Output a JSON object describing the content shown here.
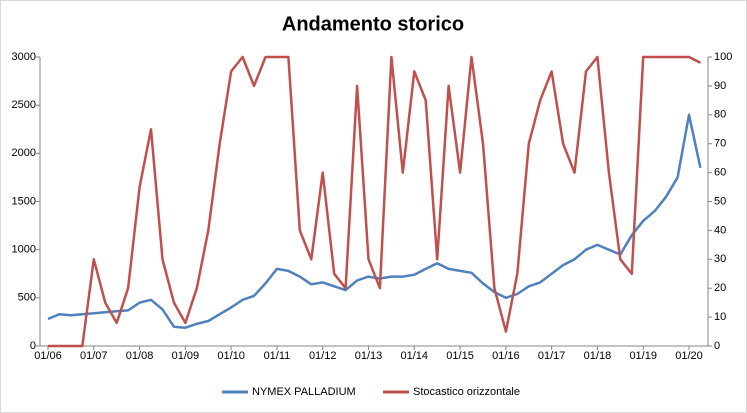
{
  "chart_data": {
    "type": "line",
    "title": "Andamento storico",
    "categories": [
      "01/06",
      null,
      null,
      null,
      "01/07",
      null,
      null,
      null,
      "01/08",
      null,
      null,
      null,
      "01/09",
      null,
      null,
      null,
      "01/10",
      null,
      null,
      null,
      "01/11",
      null,
      null,
      null,
      "01/12",
      null,
      null,
      null,
      "01/13",
      null,
      null,
      null,
      "01/14",
      null,
      null,
      null,
      "01/15",
      null,
      null,
      null,
      "01/16",
      null,
      null,
      null,
      "01/17",
      null,
      null,
      null,
      "01/18",
      null,
      null,
      null,
      "01/19",
      null,
      null,
      null,
      "01/20",
      null
    ],
    "series": [
      {
        "name": "NYMEX PALLADIUM",
        "color": "#4f81bd",
        "axis": "y",
        "values": [
          280,
          330,
          320,
          330,
          340,
          350,
          360,
          370,
          450,
          480,
          380,
          200,
          190,
          230,
          260,
          330,
          400,
          480,
          520,
          650,
          800,
          780,
          720,
          640,
          660,
          620,
          580,
          680,
          720,
          700,
          720,
          720,
          740,
          800,
          860,
          800,
          780,
          760,
          650,
          560,
          500,
          540,
          620,
          660,
          750,
          840,
          900,
          1000,
          1050,
          1000,
          950,
          1150,
          1300,
          1400,
          1550,
          1750,
          2400,
          1850
        ]
      },
      {
        "name": "Stocastico orizzontale",
        "color": "#c0504d",
        "axis": "y2",
        "values": [
          0,
          0,
          0,
          0,
          30,
          15,
          8,
          20,
          55,
          75,
          30,
          15,
          8,
          20,
          40,
          70,
          95,
          100,
          90,
          100,
          100,
          100,
          40,
          30,
          60,
          25,
          20,
          90,
          30,
          20,
          100,
          60,
          95,
          85,
          30,
          90,
          60,
          100,
          70,
          20,
          5,
          25,
          70,
          85,
          95,
          70,
          60,
          95,
          100,
          60,
          30,
          25,
          100,
          100,
          100,
          100,
          100,
          98
        ]
      }
    ],
    "ylim": [
      0,
      3000
    ],
    "yticks": [
      0,
      500,
      1000,
      1500,
      2000,
      2500,
      3000
    ],
    "y2lim": [
      0,
      100
    ],
    "y2ticks": [
      0,
      10,
      20,
      30,
      40,
      50,
      60,
      70,
      80,
      90,
      100
    ],
    "legend": "bottom"
  }
}
